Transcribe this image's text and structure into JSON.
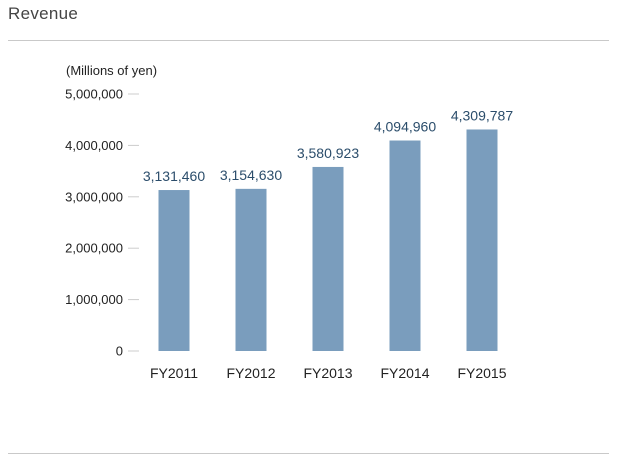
{
  "page": {
    "section_title": "Revenue"
  },
  "colors": {
    "bar": "#7a9dbd",
    "data_label": "#2b4d6b",
    "axis_text": "#222222",
    "rule": "#c9c9c9"
  },
  "chart_data": {
    "type": "bar",
    "title": "Revenue",
    "ylabel": "(Millions of yen)",
    "xlabel": "",
    "categories": [
      "FY2011",
      "FY2012",
      "FY2013",
      "FY2014",
      "FY2015"
    ],
    "values": [
      3131460,
      3154630,
      3580923,
      4094960,
      4309787
    ],
    "value_labels": [
      "3,131,460",
      "3,154,630",
      "3,580,923",
      "4,094,960",
      "4,309,787"
    ],
    "ylim": [
      0,
      5000000
    ],
    "yticks": [
      0,
      1000000,
      2000000,
      3000000,
      4000000,
      5000000
    ],
    "ytick_labels": [
      "0",
      "1,000,000",
      "2,000,000",
      "3,000,000",
      "4,000,000",
      "5,000,000"
    ],
    "grid": false,
    "legend": "none"
  }
}
